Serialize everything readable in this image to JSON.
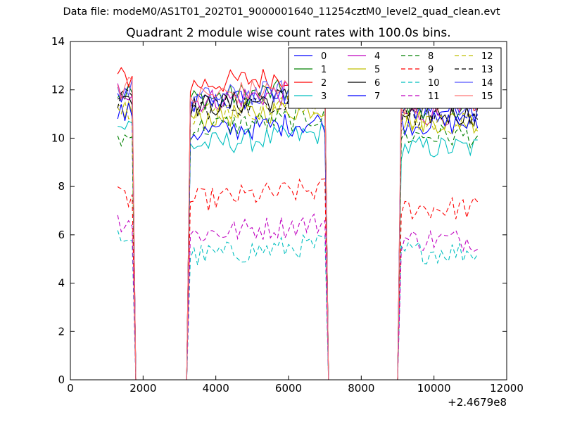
{
  "figure": {
    "suptitle": "Data file: modeM0/AS1T01_202T01_9000001640_11254cztM0_level2_quad_clean.evt"
  },
  "chart_data": {
    "type": "line",
    "title": "Quadrant 2 module wise count rates with 100.0s bins.",
    "xlabel": "",
    "ylabel": "",
    "x_offset_label": "+2.4679e8",
    "xlim": [
      0,
      12000
    ],
    "ylim": [
      0,
      14
    ],
    "xticks": [
      0,
      2000,
      4000,
      6000,
      8000,
      10000,
      12000
    ],
    "xtick_labels": [
      "0",
      "2000",
      "4000",
      "6000",
      "8000",
      "10000",
      "12000"
    ],
    "yticks": [
      0,
      2,
      4,
      6,
      8,
      10,
      12,
      14
    ],
    "ytick_labels": [
      "0",
      "2",
      "4",
      "6",
      "8",
      "10",
      "12",
      "14"
    ],
    "grid": false,
    "legend": {
      "placement": "top-right",
      "columns": 4
    },
    "segments": [
      {
        "x_start": 1300,
        "x_end": 1700,
        "step": 100
      },
      {
        "x_start": 3300,
        "x_end": 7000,
        "step": 100
      },
      {
        "x_start": 9100,
        "x_end": 11200,
        "step": 100
      }
    ],
    "zero_x": [
      1800,
      1900,
      3200,
      7100,
      8900,
      9000
    ],
    "series": [
      {
        "name": "0",
        "color": "#0000ff",
        "dash": "solid",
        "levels": [
          11.7,
          11.4,
          11.2
        ]
      },
      {
        "name": "1",
        "color": "#008000",
        "dash": "solid",
        "levels": [
          11.9,
          11.6,
          11.3
        ]
      },
      {
        "name": "2",
        "color": "#ff0000",
        "dash": "solid",
        "levels": [
          12.5,
          12.2,
          11.6
        ]
      },
      {
        "name": "3",
        "color": "#00bfbf",
        "dash": "solid",
        "levels": [
          10.5,
          9.7,
          9.6
        ]
      },
      {
        "name": "4",
        "color": "#bf00bf",
        "dash": "solid",
        "levels": [
          12.0,
          11.5,
          11.0
        ]
      },
      {
        "name": "5",
        "color": "#bfbf00",
        "dash": "solid",
        "levels": [
          11.2,
          10.8,
          10.7
        ]
      },
      {
        "name": "6",
        "color": "#000000",
        "dash": "solid",
        "levels": [
          11.8,
          11.3,
          11.0
        ]
      },
      {
        "name": "7",
        "color": "#0000ff",
        "dash": "solid",
        "levels": [
          11.0,
          10.2,
          10.6
        ]
      },
      {
        "name": "8",
        "color": "#008000",
        "dash": "dashed",
        "levels": [
          10.0,
          10.4,
          10.1
        ]
      },
      {
        "name": "9",
        "color": "#ff0000",
        "dash": "dashed",
        "levels": [
          7.5,
          7.4,
          7.1
        ]
      },
      {
        "name": "10",
        "color": "#00bfbf",
        "dash": "dashed",
        "levels": [
          5.9,
          5.1,
          5.3
        ]
      },
      {
        "name": "11",
        "color": "#bf00bf",
        "dash": "dashed",
        "levels": [
          6.6,
          6.0,
          5.8
        ]
      },
      {
        "name": "12",
        "color": "#bfbf00",
        "dash": "dashed",
        "levels": [
          11.3,
          11.0,
          10.6
        ]
      },
      {
        "name": "13",
        "color": "#000000",
        "dash": "dashed",
        "levels": [
          11.6,
          11.2,
          11.0
        ]
      },
      {
        "name": "14",
        "color": "#5555ff",
        "dash": "solid",
        "levels": [
          12.0,
          11.6,
          11.4
        ]
      },
      {
        "name": "15",
        "color": "#ff7777",
        "dash": "solid",
        "levels": [
          12.1,
          11.7,
          11.5
        ]
      }
    ]
  }
}
